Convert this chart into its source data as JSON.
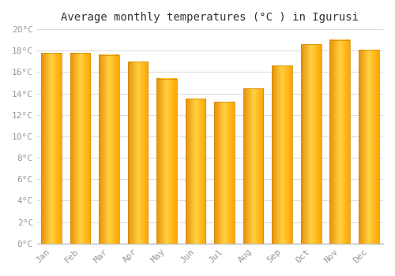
{
  "title": "Average monthly temperatures (°C ) in Igurusi",
  "months": [
    "Jan",
    "Feb",
    "Mar",
    "Apr",
    "May",
    "Jun",
    "Jul",
    "Aug",
    "Sep",
    "Oct",
    "Nov",
    "Dec"
  ],
  "values": [
    17.8,
    17.8,
    17.6,
    17.0,
    15.4,
    13.5,
    13.2,
    14.5,
    16.6,
    18.6,
    19.0,
    18.1
  ],
  "bar_color_left": "#E8900A",
  "bar_color_mid": "#FFD040",
  "bar_color_right": "#FFA500",
  "bar_border_color": "#CC8800",
  "background_color": "#FFFFFF",
  "grid_color": "#DDDDDD",
  "ylim": [
    0,
    20
  ],
  "yticks": [
    0,
    2,
    4,
    6,
    8,
    10,
    12,
    14,
    16,
    18,
    20
  ],
  "ytick_labels": [
    "0°C",
    "2°C",
    "4°C",
    "6°C",
    "8°C",
    "10°C",
    "12°C",
    "14°C",
    "16°C",
    "18°C",
    "20°C"
  ],
  "title_fontsize": 10,
  "tick_fontsize": 8,
  "tick_color": "#999999",
  "spine_color": "#BBBBBB"
}
